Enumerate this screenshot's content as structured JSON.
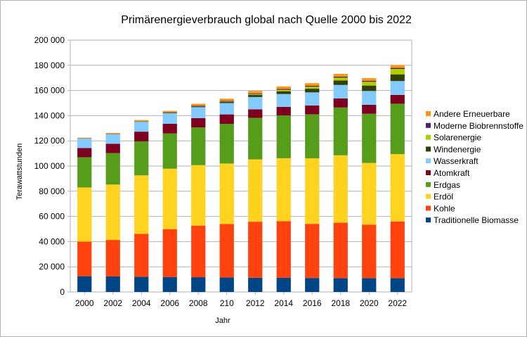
{
  "chart_data": {
    "type": "bar",
    "stacked": true,
    "title": "Primärenergieverbrauch global nach Quelle 2000 bis 2022",
    "xlabel": "Jahr",
    "ylabel": "Terawattstunden",
    "ylim": [
      0,
      200000
    ],
    "yticks": [
      "0",
      "20 000",
      "40 000",
      "60 000",
      "80 000",
      "100 000",
      "120 000",
      "140 000",
      "160 000",
      "180 000",
      "200 000"
    ],
    "grid": true,
    "legend_position": "right",
    "categories": [
      "2000",
      "2002",
      "2004",
      "2006",
      "2008",
      "210",
      "2012",
      "2014",
      "2016",
      "2018",
      "2020",
      "2022"
    ],
    "series": [
      {
        "name": "Traditionelle Biomasse",
        "color": "#004586",
        "values": [
          12500,
          12300,
          12100,
          11900,
          11700,
          11500,
          11300,
          11200,
          11100,
          11000,
          11000,
          11000
        ]
      },
      {
        "name": "Kohle",
        "color": "#ff420e",
        "values": [
          27500,
          29000,
          34000,
          38000,
          41000,
          42500,
          44500,
          45000,
          43000,
          44000,
          42500,
          45000
        ]
      },
      {
        "name": "Erdöl",
        "color": "#ffd320",
        "values": [
          43000,
          44000,
          46500,
          48000,
          48000,
          48000,
          49500,
          50000,
          52000,
          53500,
          49000,
          53500
        ]
      },
      {
        "name": "Erdgas",
        "color": "#579d1c",
        "values": [
          24000,
          25000,
          27000,
          28000,
          30000,
          31500,
          33000,
          34000,
          35000,
          38000,
          39000,
          40000
        ]
      },
      {
        "name": "Atomkraft",
        "color": "#7e0021",
        "values": [
          7300,
          7400,
          7700,
          7700,
          7400,
          7500,
          6700,
          6800,
          7000,
          7200,
          7100,
          7000
        ]
      },
      {
        "name": "Wasserkraft",
        "color": "#83caff",
        "values": [
          7500,
          7500,
          7800,
          8300,
          8600,
          9000,
          9800,
          10200,
          10400,
          10700,
          11000,
          11000
        ]
      },
      {
        "name": "Windenergie",
        "color": "#314004",
        "values": [
          100,
          150,
          250,
          400,
          600,
          1000,
          1700,
          2200,
          2900,
          3500,
          4300,
          5300
        ]
      },
      {
        "name": "Solarenergie",
        "color": "#aecf00",
        "values": [
          20,
          30,
          50,
          80,
          120,
          200,
          600,
          1100,
          1600,
          2300,
          3000,
          4300
        ]
      },
      {
        "name": "Moderne Biobrennstoffe",
        "color": "#4b1f6f",
        "values": [
          100,
          150,
          200,
          300,
          500,
          600,
          600,
          700,
          700,
          800,
          700,
          800
        ]
      },
      {
        "name": "Andere Erneuerbare",
        "color": "#ff950e",
        "values": [
          500,
          700,
          900,
          1100,
          1500,
          1700,
          1900,
          2000,
          2100,
          2200,
          2200,
          2300
        ]
      }
    ]
  }
}
